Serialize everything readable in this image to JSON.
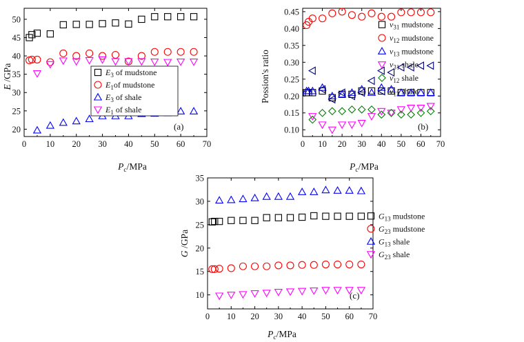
{
  "chart_data": [
    {
      "type": "scatter",
      "panel_label": "(a)",
      "xlabel": {
        "main": "P",
        "sub": "c",
        "unit": "/MPa"
      },
      "ylabel": {
        "main": "E",
        "unit": " /GPa"
      },
      "xlim": [
        0,
        70
      ],
      "ylim": [
        18,
        53
      ],
      "xticks": [
        0,
        10,
        20,
        30,
        40,
        50,
        60,
        70
      ],
      "yticks": [
        20,
        25,
        30,
        35,
        40,
        45,
        50
      ],
      "legend_position": "center-right",
      "series": [
        {
          "name": "E3 of mudstone",
          "sym": "E",
          "sub": "3",
          "suffix": " of mudstone",
          "marker": "square",
          "color": "#000000",
          "x": [
            2,
            3,
            5,
            10,
            15,
            20,
            25,
            30,
            35,
            40,
            45,
            50,
            55,
            60,
            65
          ],
          "y": [
            45,
            45.8,
            46.2,
            46,
            48.5,
            48.6,
            48.6,
            48.8,
            49,
            48.7,
            50,
            50.7,
            50.7,
            50.7,
            50.7
          ]
        },
        {
          "name": "E1 of mudstone",
          "sym": "E",
          "sub": "1",
          "suffix": "of mudstone",
          "marker": "circle",
          "color": "#ff0000",
          "x": [
            2,
            3,
            5,
            10,
            15,
            20,
            25,
            30,
            35,
            40,
            45,
            50,
            55,
            60,
            65
          ],
          "y": [
            38.8,
            39,
            39,
            38.3,
            40.7,
            40,
            40.7,
            40,
            40.3,
            38.5,
            40,
            41.1,
            41.1,
            41.1,
            41.1
          ]
        },
        {
          "name": "E3 of shale",
          "sym": "E",
          "sub": "3",
          "suffix": " of shale",
          "marker": "triangle-up",
          "color": "#0000ff",
          "x": [
            5,
            10,
            15,
            20,
            25,
            30,
            35,
            40,
            45,
            50,
            55,
            60,
            65
          ],
          "y": [
            19.7,
            21,
            21.8,
            22.2,
            22.8,
            23.6,
            23.6,
            23.6,
            24.2,
            24.3,
            24.4,
            24.9,
            24.9
          ]
        },
        {
          "name": "E1 of shale",
          "sym": "E",
          "sub": "1",
          "suffix": " of shale",
          "marker": "triangle-down",
          "color": "#ff00ff",
          "x": [
            5,
            10,
            15,
            20,
            25,
            30,
            35,
            40,
            45,
            50,
            55,
            60,
            65
          ],
          "y": [
            35.2,
            37.7,
            38.7,
            38.5,
            38.8,
            39,
            38.5,
            38.5,
            38.5,
            38.4,
            38.3,
            38.4,
            38.4
          ]
        }
      ]
    },
    {
      "type": "scatter",
      "panel_label": "(b)",
      "xlabel": {
        "main": "P",
        "sub": "c",
        "unit": "/MPa"
      },
      "ylabel": {
        "main": "Possion's ratio",
        "unit": ""
      },
      "xlim": [
        0,
        70
      ],
      "ylim": [
        0.08,
        0.46
      ],
      "xticks": [
        0,
        10,
        20,
        30,
        40,
        50,
        60,
        70
      ],
      "yticks": [
        0.1,
        0.15,
        0.2,
        0.25,
        0.3,
        0.35,
        0.4,
        0.45
      ],
      "legend_position": "right",
      "series": [
        {
          "name": "ν31 mudstone",
          "sym": "ν",
          "sub": "31",
          "suffix": " mudstone",
          "marker": "square",
          "color": "#000000",
          "x": [
            2,
            3,
            5,
            10,
            15,
            20,
            25,
            30,
            35,
            40,
            45,
            50,
            55,
            60,
            65
          ],
          "y": [
            0.21,
            0.21,
            0.21,
            0.215,
            0.195,
            0.205,
            0.205,
            0.215,
            0.215,
            0.215,
            0.215,
            0.21,
            0.21,
            0.21,
            0.21
          ]
        },
        {
          "name": "ν12 mudstone",
          "sym": "ν",
          "sub": "12",
          "suffix": " mudstone",
          "marker": "circle",
          "color": "#ff0000",
          "x": [
            2,
            3,
            5,
            10,
            15,
            20,
            25,
            30,
            35,
            40,
            45,
            50,
            55,
            60,
            65
          ],
          "y": [
            0.41,
            0.42,
            0.43,
            0.43,
            0.445,
            0.45,
            0.44,
            0.435,
            0.445,
            0.435,
            0.435,
            0.448,
            0.448,
            0.448,
            0.448
          ]
        },
        {
          "name": "ν13 mudstone",
          "sym": "ν",
          "sub": "13",
          "suffix": " mudstone",
          "marker": "triangle-up",
          "color": "#0000ff",
          "x": [
            2,
            3,
            5,
            10,
            15,
            20,
            25,
            30,
            35,
            40,
            45,
            50,
            55,
            60,
            65
          ],
          "y": [
            0.215,
            0.215,
            0.215,
            0.225,
            0.2,
            0.205,
            0.21,
            0.22,
            0.21,
            0.225,
            0.22,
            0.21,
            0.21,
            0.21,
            0.21
          ]
        },
        {
          "name": "ν31 shale",
          "sym": "ν",
          "sub": "31",
          "suffix": " shale",
          "marker": "triangle-down",
          "color": "#ff00ff",
          "x": [
            5,
            10,
            15,
            20,
            25,
            30,
            35,
            40,
            45,
            50,
            55,
            60,
            65
          ],
          "y": [
            0.14,
            0.115,
            0.1,
            0.115,
            0.115,
            0.12,
            0.14,
            0.155,
            0.15,
            0.16,
            0.165,
            0.165,
            0.17
          ]
        },
        {
          "name": "ν12 shale",
          "sym": "ν",
          "sub": "12",
          "suffix": " shale",
          "marker": "diamond",
          "color": "#008000",
          "x": [
            5,
            10,
            15,
            20,
            25,
            30,
            35,
            40,
            45,
            50,
            55,
            60,
            65
          ],
          "y": [
            0.13,
            0.15,
            0.155,
            0.155,
            0.16,
            0.16,
            0.16,
            0.145,
            0.15,
            0.145,
            0.145,
            0.15,
            0.155
          ]
        },
        {
          "name": "ν13 shale",
          "sym": "ν",
          "sub": "13",
          "suffix": " shale",
          "marker": "triangle-left",
          "color": "#000080",
          "x": [
            5,
            10,
            15,
            20,
            25,
            30,
            35,
            40,
            45,
            50,
            55,
            60,
            65
          ],
          "y": [
            0.275,
            0.22,
            0.19,
            0.21,
            0.2,
            0.21,
            0.245,
            0.275,
            0.27,
            0.285,
            0.285,
            0.29,
            0.29
          ]
        }
      ]
    },
    {
      "type": "scatter",
      "panel_label": "(c)",
      "xlabel": {
        "main": "P",
        "sub": "c",
        "unit": "/MPa"
      },
      "ylabel": {
        "main": "G",
        "unit": " /GPa"
      },
      "xlim": [
        0,
        70
      ],
      "ylim": [
        7,
        35
      ],
      "xticks": [
        0,
        10,
        20,
        30,
        40,
        50,
        60,
        70
      ],
      "yticks": [
        10,
        15,
        20,
        25,
        30,
        35
      ],
      "legend_position": "right",
      "series": [
        {
          "name": "G13 mudstone",
          "sym": "G",
          "sub": "13",
          "suffix": " mudstone",
          "marker": "square",
          "color": "#000000",
          "x": [
            2,
            3,
            5,
            10,
            15,
            20,
            25,
            30,
            35,
            40,
            45,
            50,
            55,
            60,
            65
          ],
          "y": [
            25.6,
            25.7,
            25.7,
            25.9,
            25.9,
            25.9,
            26.5,
            26.5,
            26.5,
            26.6,
            26.9,
            26.8,
            26.8,
            26.8,
            26.8
          ]
        },
        {
          "name": "G23 mudstone",
          "sym": "G",
          "sub": "23",
          "suffix": " mudstone",
          "marker": "circle",
          "color": "#ff0000",
          "x": [
            2,
            3,
            5,
            10,
            15,
            20,
            25,
            30,
            35,
            40,
            45,
            50,
            55,
            60,
            65
          ],
          "y": [
            15.5,
            15.5,
            15.6,
            15.7,
            16.1,
            16.1,
            16.1,
            16.3,
            16.3,
            16.4,
            16.4,
            16.5,
            16.5,
            16.5,
            16.5
          ]
        },
        {
          "name": "G13 shale",
          "sym": "G",
          "sub": "13",
          "suffix": " shale",
          "marker": "triangle-up",
          "color": "#0000ff",
          "x": [
            5,
            10,
            15,
            20,
            25,
            30,
            35,
            40,
            45,
            50,
            55,
            60,
            65
          ],
          "y": [
            30.2,
            30.3,
            30.5,
            30.7,
            31,
            31,
            31,
            32,
            32,
            32.4,
            32.3,
            32.3,
            32.2
          ]
        },
        {
          "name": "G23 shale",
          "sym": "G",
          "sub": "23",
          "suffix": " shale",
          "marker": "triangle-down",
          "color": "#ff00ff",
          "x": [
            5,
            10,
            15,
            20,
            25,
            30,
            35,
            40,
            45,
            50,
            55,
            60,
            65
          ],
          "y": [
            9.8,
            10,
            10.1,
            10.3,
            10.4,
            10.6,
            10.7,
            10.8,
            10.9,
            11,
            11,
            11,
            11
          ]
        }
      ]
    }
  ]
}
